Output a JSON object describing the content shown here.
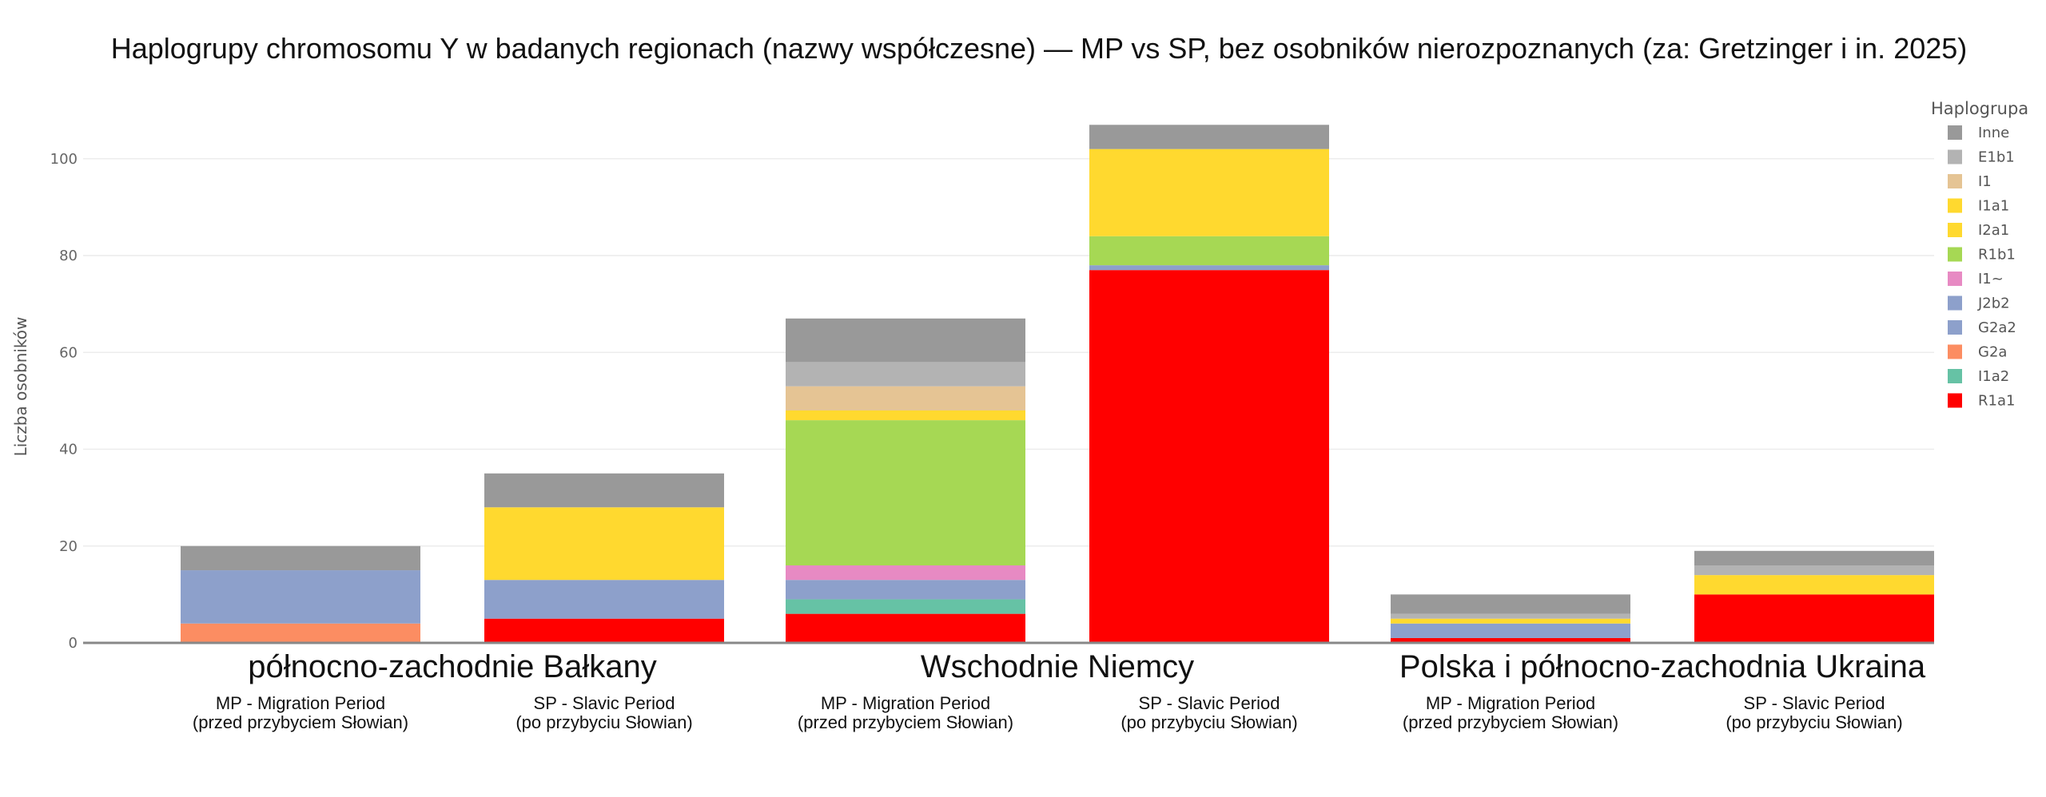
{
  "chart_data": {
    "type": "bar",
    "stacked": true,
    "title": "Haplogrupy chromosomu Y w badanych regionach (nazwy współczesne) — MP vs SP, bez osobników nierozpoznanych (za: Gretzinger i in. 2025)",
    "ylabel": "Liczba osobników",
    "ylim": [
      0,
      112
    ],
    "yticks": [
      0,
      20,
      40,
      60,
      80,
      100
    ],
    "grid": true,
    "legend_title": "Haplogrupa",
    "legend_position": "top-right",
    "regions": [
      {
        "name": "północno-zachodnie Bałkany",
        "bars": [
          0,
          1
        ]
      },
      {
        "name": "Wschodnie Niemcy",
        "bars": [
          2,
          3
        ]
      },
      {
        "name": "Polska i północno-zachodnia Ukraina",
        "bars": [
          4,
          5
        ]
      }
    ],
    "categories": [
      [
        "MP - Migration Period",
        "(przed przybyciem Słowian)"
      ],
      [
        "SP - Slavic Period",
        "(po przybyciu Słowian)"
      ],
      [
        "MP - Migration Period",
        "(przed przybyciem Słowian)"
      ],
      [
        "SP - Slavic Period",
        "(po przybyciu Słowian)"
      ],
      [
        "MP - Migration Period",
        "(przed przybyciem Słowian)"
      ],
      [
        "SP - Slavic Period",
        "(po przybyciu Słowian)"
      ]
    ],
    "series": [
      {
        "name": "R1a1",
        "color": "#ff0000",
        "values": [
          0,
          5,
          6,
          77,
          1,
          10
        ]
      },
      {
        "name": "I1a2",
        "color": "#66c2a5",
        "values": [
          0,
          0,
          3,
          0,
          0,
          0
        ]
      },
      {
        "name": "G2a",
        "color": "#fc8d62",
        "values": [
          4,
          0,
          0,
          0,
          0,
          0
        ]
      },
      {
        "name": "G2a2",
        "color": "#8da0cb",
        "values": [
          11,
          8,
          4,
          1,
          3,
          0
        ]
      },
      {
        "name": "J2b2",
        "color": "#8da0cb",
        "values": [
          0,
          0,
          0,
          0,
          0,
          0
        ]
      },
      {
        "name": "I1~",
        "color": "#e78ac3",
        "values": [
          0,
          0,
          3,
          0,
          0,
          0
        ]
      },
      {
        "name": "R1b1",
        "color": "#a6d854",
        "values": [
          0,
          0,
          30,
          6,
          0,
          0
        ]
      },
      {
        "name": "I2a1",
        "color": "#ffd92f",
        "values": [
          0,
          15,
          2,
          18,
          1,
          4
        ]
      },
      {
        "name": "I1a1",
        "color": "#ffd92f",
        "values": [
          0,
          0,
          0,
          0,
          0,
          0
        ]
      },
      {
        "name": "I1",
        "color": "#e5c494",
        "values": [
          0,
          0,
          5,
          0,
          0,
          0
        ]
      },
      {
        "name": "E1b1",
        "color": "#b3b3b3",
        "values": [
          0,
          0,
          5,
          0,
          1,
          2
        ]
      },
      {
        "name": "Inne",
        "color": "#999999",
        "values": [
          5,
          7,
          9,
          5,
          4,
          3
        ]
      }
    ]
  }
}
